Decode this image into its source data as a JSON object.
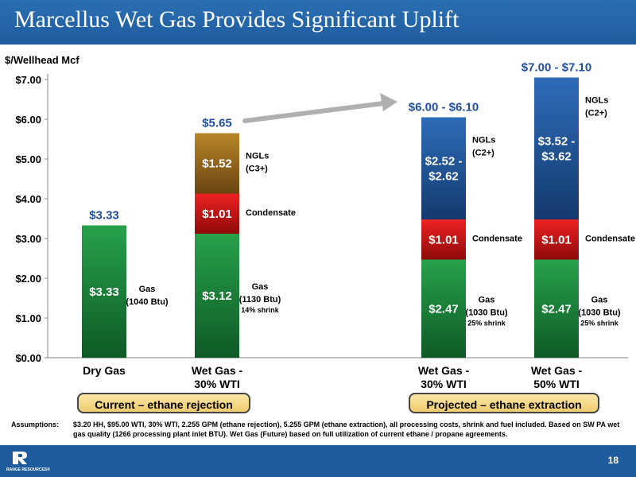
{
  "header": {
    "title": "Marcellus Wet Gas Provides Significant Uplift"
  },
  "chart_data": {
    "type": "bar",
    "stacked": true,
    "ylabel": "$/Wellhead Mcf",
    "ylim": [
      0,
      7
    ],
    "yticks": [
      "$0.00",
      "$1.00",
      "$2.00",
      "$3.00",
      "$4.00",
      "$5.00",
      "$6.00",
      "$7.00"
    ],
    "grid": false,
    "categories": [
      "Dry Gas",
      "Wet Gas - 30% WTI",
      "Wet Gas - 30% WTI",
      "Wet Gas - 50% WTI"
    ],
    "category_lines": [
      [
        "Dry Gas"
      ],
      [
        "Wet Gas -",
        "30% WTI"
      ],
      [
        "Wet Gas -",
        "30% WTI"
      ],
      [
        "Wet Gas -",
        "50% WTI"
      ]
    ],
    "series": [
      {
        "name": "Gas",
        "color": "#1e8a3c",
        "values": [
          3.33,
          3.12,
          2.47,
          2.47
        ],
        "labels": [
          [
            "$3.33"
          ],
          [
            "$3.12"
          ],
          [
            "$2.47"
          ],
          [
            "$2.47"
          ]
        ]
      },
      {
        "name": "Condensate",
        "color": "#d11010",
        "values": [
          0,
          1.01,
          1.01,
          1.01
        ],
        "labels": [
          [],
          [
            "$1.01"
          ],
          [
            "$1.01"
          ],
          [
            "$1.01"
          ]
        ]
      },
      {
        "name": "NGLs",
        "color": "#6e4a12",
        "values": [
          0,
          1.52,
          2.57,
          3.57
        ],
        "labels": [
          [],
          [
            "$1.52"
          ],
          [
            "$2.52 -",
            "$2.62"
          ],
          [
            "$3.52 -",
            "$3.62"
          ]
        ],
        "colors": [
          "",
          "#9c6a14",
          "#1d4f8d",
          "#1d4f8d"
        ]
      }
    ],
    "totals": [
      "$3.33",
      "$5.65",
      "$6.00 - $6.10",
      "$7.00 - $7.10"
    ],
    "side_labels": [
      [
        {
          "seg": 0,
          "lines": [
            "Gas",
            "(1040 Btu)"
          ]
        }
      ],
      [
        {
          "seg": 0,
          "lines": [
            "Gas",
            "(1130 Btu)"
          ],
          "small": "14% shrink"
        },
        {
          "seg": 1,
          "lines": [
            "Condensate"
          ]
        },
        {
          "seg": 2,
          "lines": [
            "NGLs",
            "(C3+)"
          ]
        }
      ],
      [
        {
          "seg": 0,
          "lines": [
            "Gas",
            "(1030 Btu)"
          ],
          "small": "25% shrink"
        },
        {
          "seg": 1,
          "lines": [
            "Condensate"
          ]
        },
        {
          "seg": 2,
          "lines": [
            "NGLs",
            "(C2+)"
          ]
        }
      ],
      [
        {
          "seg": 0,
          "lines": [
            "Gas",
            "(1030 Btu)"
          ],
          "small": "25% shrink"
        },
        {
          "seg": 1,
          "lines": [
            "Condensate"
          ]
        },
        {
          "seg": 2,
          "lines": [
            "NGLs",
            "(C2+)"
          ]
        }
      ]
    ],
    "group_labels": [
      "Current – ethane rejection",
      "Projected – ethane extraction"
    ]
  },
  "assumptions": {
    "label": "Assumptions:",
    "text": "$3.20 HH, $95.00 WTI, 30% WTI, 2.255 GPM (ethane rejection), 5.255 GPM (ethane extraction), all processing costs, shrink and fuel included.  Based on SW PA wet gas quality (1266 processing plant inlet BTU).  Wet Gas (Future) based on full utilization of current ethane / propane agreements."
  },
  "footer": {
    "company": "RANGE RESOURCES®",
    "page": "18"
  }
}
